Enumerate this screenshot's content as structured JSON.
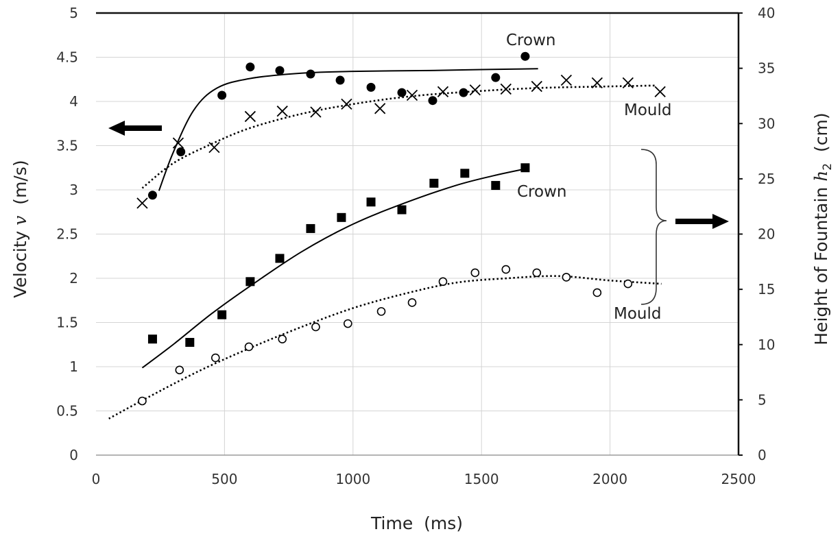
{
  "chart_data": {
    "type": "scatter",
    "xlabel": "Time  (ms)",
    "ylabel": "Velocity",
    "ylabel_var": "v",
    "ylabel_unit": "(m/s)",
    "y2label": "Height of Fountain",
    "y2label_var": "h",
    "y2label_sub": "2",
    "y2label_unit": "(cm)",
    "xlim": [
      0,
      2500
    ],
    "ylim": [
      0,
      5
    ],
    "y2lim": [
      0,
      40
    ],
    "grid": true,
    "x_ticks": [
      "0",
      "500",
      "1000",
      "1500",
      "2000",
      "2500"
    ],
    "y_ticks": [
      "0",
      "0.5",
      "1",
      "1.5",
      "2",
      "2.5",
      "3",
      "3.5",
      "4",
      "4.5",
      "5"
    ],
    "y2_ticks": [
      "0",
      "5",
      "10",
      "15",
      "20",
      "25",
      "30",
      "35",
      "40"
    ],
    "annotations": {
      "crown_velocity": "Crown",
      "mould_velocity": "Mould",
      "crown_height": "Crown",
      "mould_height": "Mould"
    },
    "series": [
      {
        "axis": "left",
        "marker": "filled-circle",
        "points": [
          [
            220,
            2.94
          ],
          [
            330,
            3.43
          ],
          [
            490,
            4.07
          ],
          [
            600,
            4.39
          ],
          [
            715,
            4.35
          ],
          [
            835,
            4.31
          ],
          [
            950,
            4.24
          ],
          [
            1070,
            4.16
          ],
          [
            1190,
            4.1
          ],
          [
            1310,
            4.01
          ],
          [
            1430,
            4.1
          ],
          [
            1555,
            4.27
          ],
          [
            1670,
            4.51
          ]
        ]
      },
      {
        "axis": "left",
        "marker": "cross",
        "points": [
          [
            180,
            2.85
          ],
          [
            320,
            3.53
          ],
          [
            460,
            3.48
          ],
          [
            600,
            3.83
          ],
          [
            725,
            3.89
          ],
          [
            855,
            3.88
          ],
          [
            975,
            3.97
          ],
          [
            1105,
            3.92
          ],
          [
            1230,
            4.07
          ],
          [
            1350,
            4.11
          ],
          [
            1475,
            4.13
          ],
          [
            1595,
            4.14
          ],
          [
            1715,
            4.17
          ],
          [
            1830,
            4.24
          ],
          [
            1950,
            4.21
          ],
          [
            2070,
            4.21
          ],
          [
            2195,
            4.11
          ]
        ]
      },
      {
        "axis": "right",
        "marker": "filled-square",
        "points": [
          [
            220,
            10.5
          ],
          [
            365,
            10.2
          ],
          [
            490,
            12.7
          ],
          [
            600,
            15.7
          ],
          [
            715,
            17.8
          ],
          [
            835,
            20.5
          ],
          [
            955,
            21.5
          ],
          [
            1070,
            22.9
          ],
          [
            1190,
            22.2
          ],
          [
            1315,
            24.6
          ],
          [
            1435,
            25.5
          ],
          [
            1555,
            24.4
          ],
          [
            1670,
            26.0
          ]
        ]
      },
      {
        "axis": "right",
        "marker": "open-circle",
        "points": [
          [
            180,
            4.9
          ],
          [
            325,
            7.7
          ],
          [
            465,
            8.8
          ],
          [
            595,
            9.8
          ],
          [
            725,
            10.5
          ],
          [
            855,
            11.6
          ],
          [
            980,
            11.9
          ],
          [
            1110,
            13.0
          ],
          [
            1230,
            13.8
          ],
          [
            1350,
            15.7
          ],
          [
            1475,
            16.5
          ],
          [
            1595,
            16.8
          ],
          [
            1715,
            16.5
          ],
          [
            1830,
            16.1
          ],
          [
            1950,
            14.7
          ],
          [
            2070,
            15.5
          ]
        ]
      }
    ],
    "fits": [
      {
        "axis": "left",
        "style": "solid",
        "points": [
          [
            245,
            2.99
          ],
          [
            300,
            3.42
          ],
          [
            380,
            3.9
          ],
          [
            470,
            4.15
          ],
          [
            600,
            4.26
          ],
          [
            800,
            4.32
          ],
          [
            1000,
            4.34
          ],
          [
            1300,
            4.35
          ],
          [
            1500,
            4.36
          ],
          [
            1720,
            4.37
          ]
        ]
      },
      {
        "axis": "left",
        "style": "dotted",
        "points": [
          [
            180,
            3.02
          ],
          [
            300,
            3.3
          ],
          [
            450,
            3.52
          ],
          [
            600,
            3.7
          ],
          [
            800,
            3.86
          ],
          [
            1000,
            3.97
          ],
          [
            1200,
            4.05
          ],
          [
            1400,
            4.1
          ],
          [
            1700,
            4.15
          ],
          [
            2000,
            4.17
          ],
          [
            2180,
            4.18
          ]
        ]
      },
      {
        "axis": "right",
        "style": "solid",
        "points": [
          [
            180,
            7.9
          ],
          [
            300,
            10.0
          ],
          [
            450,
            12.8
          ],
          [
            600,
            15.3
          ],
          [
            800,
            18.4
          ],
          [
            1000,
            20.9
          ],
          [
            1200,
            22.8
          ],
          [
            1400,
            24.4
          ],
          [
            1550,
            25.3
          ],
          [
            1670,
            25.9
          ]
        ]
      },
      {
        "axis": "right",
        "style": "dotted",
        "points": [
          [
            50,
            3.3
          ],
          [
            200,
            5.2
          ],
          [
            400,
            7.6
          ],
          [
            600,
            9.7
          ],
          [
            800,
            11.6
          ],
          [
            1000,
            13.3
          ],
          [
            1200,
            14.6
          ],
          [
            1400,
            15.6
          ],
          [
            1600,
            16.0
          ],
          [
            1800,
            16.2
          ],
          [
            2000,
            15.8
          ],
          [
            2200,
            15.5
          ]
        ]
      }
    ]
  }
}
